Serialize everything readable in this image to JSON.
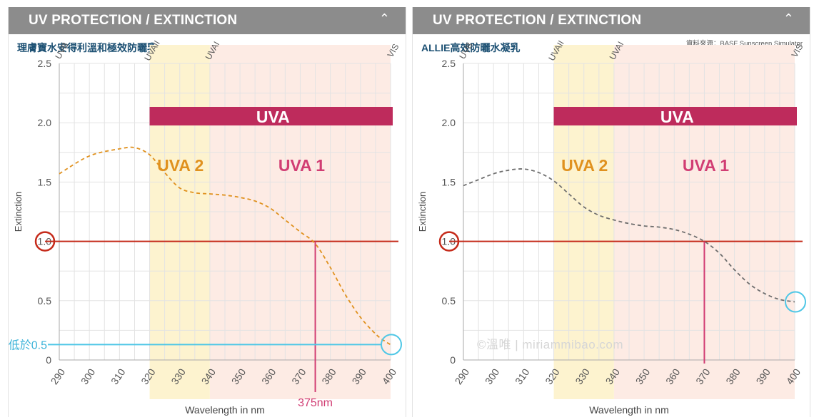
{
  "chart_data": [
    {
      "type": "line",
      "header_title": "UV PROTECTION / EXTINCTION",
      "product_name": "理膚寶水安得利溫和極效防曬乳",
      "ylabel": "Extinction",
      "xlabel": "Wavelength in nm",
      "xlim": [
        290,
        400
      ],
      "ylim": [
        0,
        2.5
      ],
      "x_ticks": [
        290,
        300,
        310,
        320,
        330,
        340,
        350,
        360,
        370,
        380,
        390,
        400
      ],
      "y_ticks": [
        "0",
        "0.5",
        "1.0",
        "1.5",
        "2.0",
        "2.5"
      ],
      "regions": [
        {
          "label": "UVB",
          "start": 290,
          "end": 320
        },
        {
          "label": "UVAII",
          "start": 320,
          "end": 340
        },
        {
          "label": "UVAI",
          "start": 340,
          "end": 400
        },
        {
          "label": "VIS",
          "start": 400,
          "end": 400
        }
      ],
      "uva_bar": "UVA",
      "uva2_label": "UVA 2",
      "uva1_label": "UVA 1",
      "series": [
        {
          "name": "Extinction",
          "color": "#e0911e",
          "x": [
            290,
            300,
            310,
            315,
            320,
            325,
            330,
            335,
            340,
            345,
            350,
            355,
            360,
            365,
            370,
            375,
            380,
            385,
            390,
            395,
            398,
            400
          ],
          "y": [
            1.57,
            1.72,
            1.78,
            1.79,
            1.73,
            1.58,
            1.45,
            1.41,
            1.4,
            1.39,
            1.37,
            1.34,
            1.28,
            1.18,
            1.08,
            0.98,
            0.78,
            0.55,
            0.36,
            0.22,
            0.16,
            0.13
          ]
        }
      ],
      "threshold": 1.0,
      "crossing_x": 375,
      "crossing_label": "375nm",
      "low_value": 0.13,
      "low_label": "低於0.5",
      "source_note": "",
      "watermark": ""
    },
    {
      "type": "line",
      "header_title": "UV PROTECTION / EXTINCTION",
      "product_name": "ALLIE高效防曬水凝乳",
      "ylabel": "Extinction",
      "xlabel": "Wavelength in nm",
      "xlim": [
        290,
        400
      ],
      "ylim": [
        0,
        2.5
      ],
      "x_ticks": [
        290,
        300,
        310,
        320,
        330,
        340,
        350,
        360,
        370,
        380,
        390,
        400
      ],
      "y_ticks": [
        "0",
        "0.5",
        "1.0",
        "1.5",
        "2.0",
        "2.5"
      ],
      "regions": [
        {
          "label": "UVB",
          "start": 290,
          "end": 320
        },
        {
          "label": "UVAII",
          "start": 320,
          "end": 340
        },
        {
          "label": "UVAI",
          "start": 340,
          "end": 400
        },
        {
          "label": "VIS",
          "start": 400,
          "end": 400
        }
      ],
      "uva_bar": "UVA",
      "uva2_label": "UVA 2",
      "uva1_label": "UVA 1",
      "series": [
        {
          "name": "Extinction",
          "color": "#6e6e6e",
          "x": [
            290,
            295,
            300,
            305,
            310,
            315,
            320,
            325,
            330,
            335,
            340,
            345,
            350,
            355,
            360,
            365,
            370,
            375,
            380,
            385,
            390,
            395,
            400
          ],
          "y": [
            1.47,
            1.52,
            1.57,
            1.6,
            1.61,
            1.58,
            1.51,
            1.4,
            1.29,
            1.22,
            1.18,
            1.15,
            1.13,
            1.12,
            1.1,
            1.06,
            1.0,
            0.9,
            0.76,
            0.64,
            0.56,
            0.51,
            0.49
          ]
        }
      ],
      "threshold": 1.0,
      "crossing_x": 370,
      "crossing_label": "",
      "low_value": 0.49,
      "low_label": "",
      "source_note": "資料來源：BASF Sunscreen Simulator",
      "watermark": "©溫唯 | miriammibao.com"
    }
  ]
}
